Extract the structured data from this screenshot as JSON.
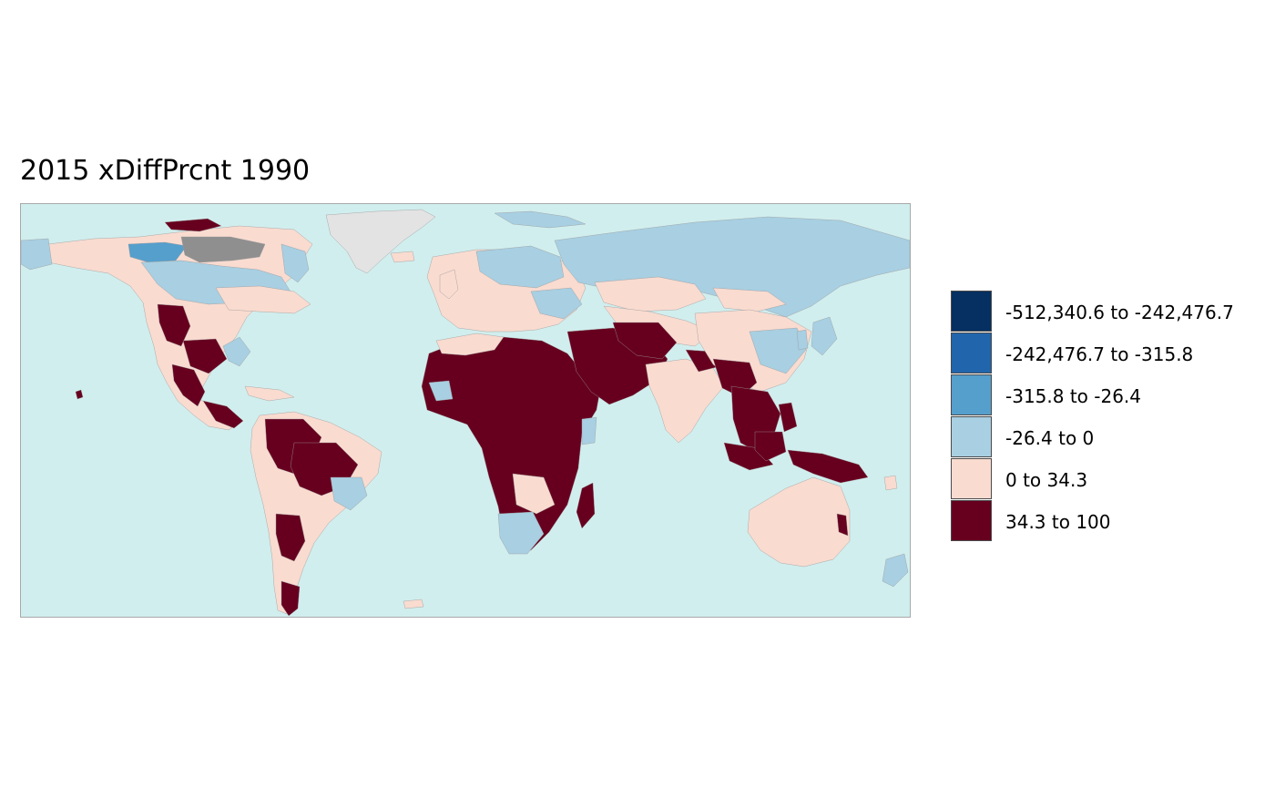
{
  "title": "2015 xDiffPrcnt 1990",
  "colors": {
    "ocean": "#d1eeee",
    "no_data": "#e3e3e3",
    "missing_dark": "#8f8f8f"
  },
  "legend": [
    {
      "label": "-512,340.6 to -242,476.7",
      "color": "#053061"
    },
    {
      "label": "-242,476.7 to -315.8",
      "color": "#2166ac"
    },
    {
      "label": "-315.8 to -26.4",
      "color": "#559fcc"
    },
    {
      "label": "-26.4 to 0",
      "color": "#a8cfe2"
    },
    {
      "label": "0 to 34.3",
      "color": "#f9dbd0"
    },
    {
      "label": "34.3 to 100",
      "color": "#67001f"
    }
  ]
}
